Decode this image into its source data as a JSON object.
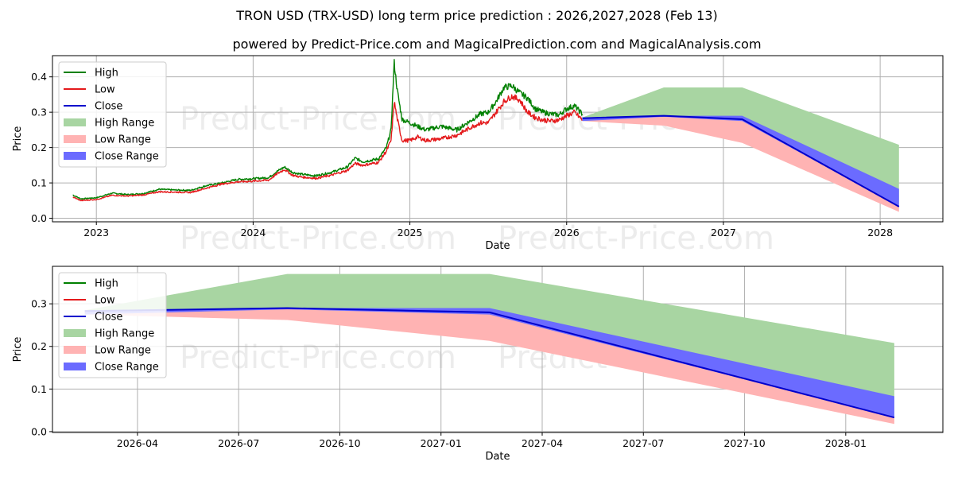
{
  "title": "TRON USD (TRX-USD) long term price prediction : 2026,2027,2028 (Feb 13)",
  "subtitle": "powered by Predict-Price.com and MagicalPrediction.com and MagicalAnalysis.com",
  "watermark": "Predict-Price.com",
  "colors": {
    "high": "#008000",
    "low": "#e41a1c",
    "close": "#0000cc",
    "high_range": "#a8d5a2",
    "low_range": "#ffb3b3",
    "close_range": "#6b6bff"
  },
  "chart_data": [
    {
      "id": "top",
      "type": "line",
      "xlabel": "Date",
      "ylabel": "Price",
      "xlim": [
        2022.72,
        2028.4
      ],
      "ylim": [
        -0.01,
        0.46
      ],
      "xticks": [
        {
          "value": 2023.0,
          "label": "2023"
        },
        {
          "value": 2024.0,
          "label": "2024"
        },
        {
          "value": 2025.0,
          "label": "2025"
        },
        {
          "value": 2026.0,
          "label": "2026"
        },
        {
          "value": 2027.0,
          "label": "2027"
        },
        {
          "value": 2028.0,
          "label": "2028"
        }
      ],
      "yticks": [
        {
          "value": 0.0,
          "label": "0.0"
        },
        {
          "value": 0.1,
          "label": "0.1"
        },
        {
          "value": 0.2,
          "label": "0.2"
        },
        {
          "value": 0.3,
          "label": "0.3"
        },
        {
          "value": 0.4,
          "label": "0.4"
        }
      ],
      "history": {
        "x": [
          2022.85,
          2022.9,
          2023.0,
          2023.1,
          2023.2,
          2023.3,
          2023.4,
          2023.5,
          2023.6,
          2023.7,
          2023.8,
          2023.9,
          2024.0,
          2024.1,
          2024.15,
          2024.2,
          2024.25,
          2024.3,
          2024.4,
          2024.5,
          2024.6,
          2024.65,
          2024.7,
          2024.8,
          2024.85,
          2024.88,
          2024.9,
          2024.92,
          2024.95,
          2025.0,
          2025.05,
          2025.1,
          2025.2,
          2025.3,
          2025.4,
          2025.45,
          2025.5,
          2025.55,
          2025.6,
          2025.65,
          2025.7,
          2025.75,
          2025.8,
          2025.85,
          2025.9,
          2025.95,
          2026.0,
          2026.05,
          2026.1
        ],
        "high": [
          0.066,
          0.055,
          0.058,
          0.071,
          0.067,
          0.07,
          0.082,
          0.08,
          0.079,
          0.092,
          0.1,
          0.11,
          0.112,
          0.115,
          0.132,
          0.145,
          0.13,
          0.125,
          0.12,
          0.13,
          0.145,
          0.17,
          0.16,
          0.168,
          0.2,
          0.25,
          0.44,
          0.36,
          0.28,
          0.27,
          0.26,
          0.25,
          0.26,
          0.25,
          0.28,
          0.295,
          0.3,
          0.33,
          0.37,
          0.375,
          0.355,
          0.34,
          0.31,
          0.3,
          0.295,
          0.292,
          0.31,
          0.318,
          0.295
        ],
        "low": [
          0.06,
          0.05,
          0.053,
          0.065,
          0.063,
          0.066,
          0.075,
          0.074,
          0.073,
          0.085,
          0.097,
          0.103,
          0.105,
          0.108,
          0.125,
          0.138,
          0.122,
          0.117,
          0.113,
          0.122,
          0.135,
          0.155,
          0.15,
          0.158,
          0.19,
          0.22,
          0.33,
          0.28,
          0.22,
          0.22,
          0.23,
          0.22,
          0.225,
          0.235,
          0.26,
          0.27,
          0.27,
          0.3,
          0.33,
          0.345,
          0.335,
          0.3,
          0.285,
          0.278,
          0.275,
          0.278,
          0.29,
          0.3,
          0.278
        ]
      },
      "forecast": {
        "x": [
          2026.1,
          2026.62,
          2027.12,
          2028.12
        ],
        "close": [
          0.283,
          0.29,
          0.28,
          0.033
        ],
        "high_range_upper": [
          0.285,
          0.37,
          0.37,
          0.208
        ],
        "low_range_lower": [
          0.275,
          0.262,
          0.213,
          0.018
        ],
        "close_range_upper": [
          0.285,
          0.29,
          0.29,
          0.083
        ],
        "close_range_lower": [
          0.275,
          0.287,
          0.275,
          0.033
        ]
      }
    },
    {
      "id": "bottom",
      "type": "line",
      "xlabel": "Date",
      "ylabel": "Price",
      "xlim": [
        2026.04,
        2028.24
      ],
      "ylim": [
        -0.002,
        0.388
      ],
      "xticks": [
        {
          "value": 2026.25,
          "label": "2026-04"
        },
        {
          "value": 2026.5,
          "label": "2026-07"
        },
        {
          "value": 2026.75,
          "label": "2026-10"
        },
        {
          "value": 2027.0,
          "label": "2027-01"
        },
        {
          "value": 2027.25,
          "label": "2027-04"
        },
        {
          "value": 2027.5,
          "label": "2027-07"
        },
        {
          "value": 2027.75,
          "label": "2027-10"
        },
        {
          "value": 2028.0,
          "label": "2028-01"
        }
      ],
      "yticks": [
        {
          "value": 0.0,
          "label": "0.0"
        },
        {
          "value": 0.1,
          "label": "0.1"
        },
        {
          "value": 0.2,
          "label": "0.2"
        },
        {
          "value": 0.3,
          "label": "0.3"
        }
      ],
      "forecast": {
        "x": [
          2026.12,
          2026.62,
          2027.12,
          2028.12
        ],
        "close": [
          0.283,
          0.29,
          0.28,
          0.033
        ],
        "high_range_upper": [
          0.285,
          0.37,
          0.37,
          0.208
        ],
        "low_range_lower": [
          0.275,
          0.262,
          0.213,
          0.018
        ],
        "close_range_upper": [
          0.285,
          0.29,
          0.29,
          0.083
        ],
        "close_range_lower": [
          0.275,
          0.287,
          0.275,
          0.033
        ]
      }
    }
  ],
  "legend": {
    "high": "High",
    "low": "Low",
    "close": "Close",
    "high_range": "High Range",
    "low_range": "Low Range",
    "close_range": "Close Range"
  }
}
